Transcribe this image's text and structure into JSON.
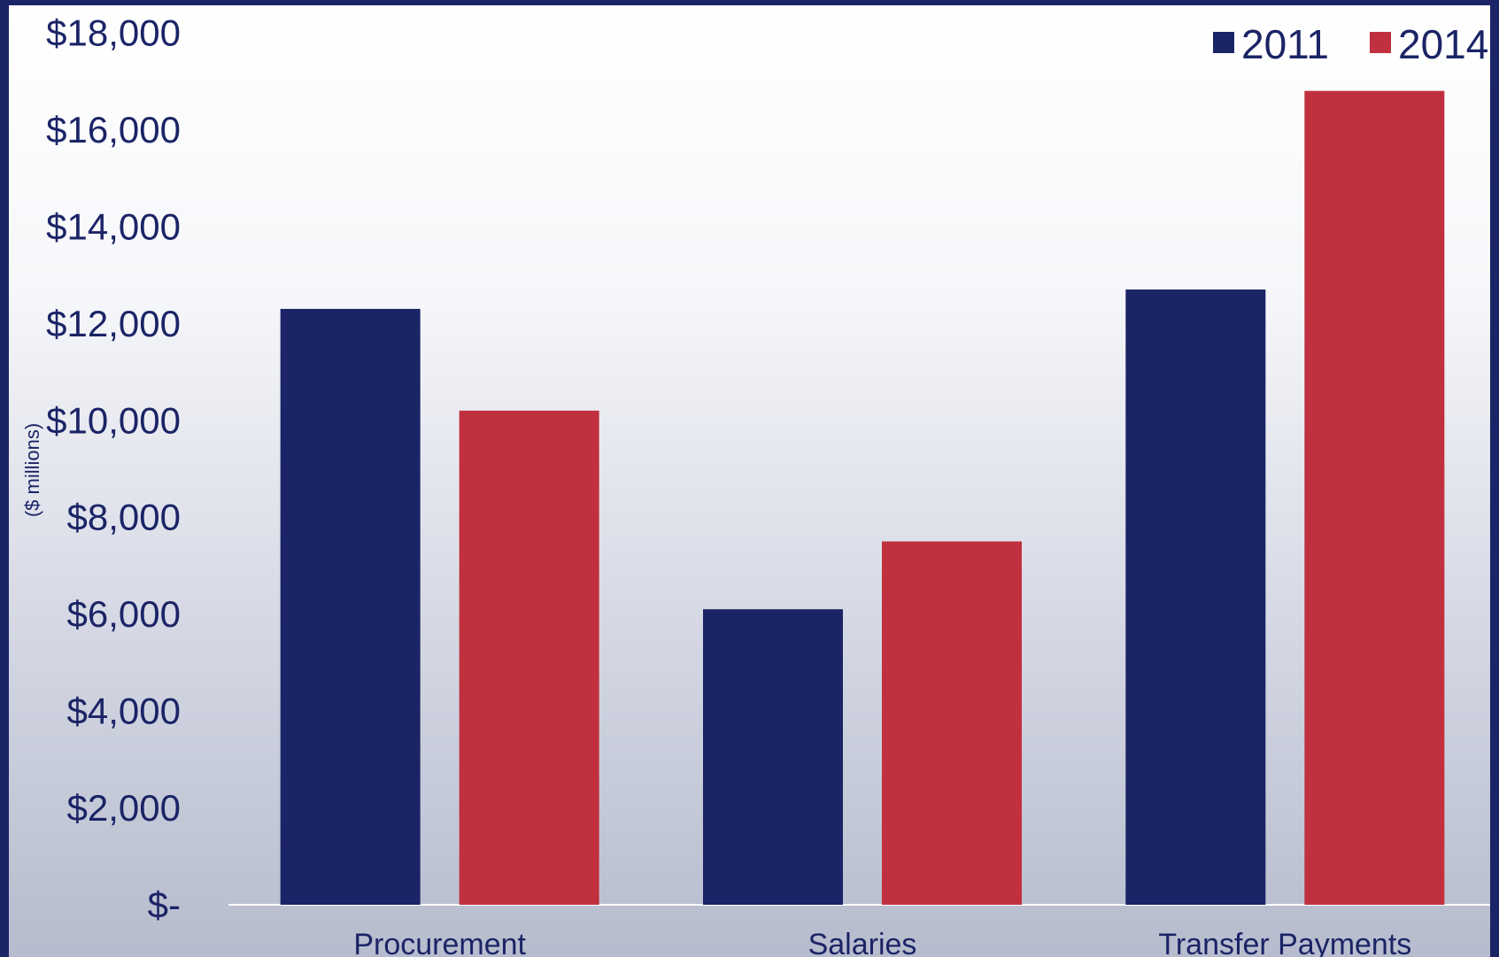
{
  "chart_data": {
    "type": "bar",
    "categories": [
      "Procurement",
      "Salaries",
      "Transfer Payments"
    ],
    "series": [
      {
        "name": "2011",
        "color": "#1b2466",
        "values": [
          12300,
          6100,
          12700
        ]
      },
      {
        "name": "2014",
        "color": "#c0303e",
        "values": [
          10200,
          7500,
          16800
        ]
      }
    ],
    "ylabel": "($ millions)",
    "ylim": [
      0,
      18000
    ],
    "yticks": [
      {
        "value": 0,
        "label": "$-"
      },
      {
        "value": 2000,
        "label": "$2,000"
      },
      {
        "value": 4000,
        "label": "$4,000"
      },
      {
        "value": 6000,
        "label": "$6,000"
      },
      {
        "value": 8000,
        "label": "$8,000"
      },
      {
        "value": 10000,
        "label": "$10,000"
      },
      {
        "value": 12000,
        "label": "$12,000"
      },
      {
        "value": 14000,
        "label": "$14,000"
      },
      {
        "value": 16000,
        "label": "$16,000"
      },
      {
        "value": 18000,
        "label": "$18,000"
      }
    ],
    "grid": false,
    "legend_position": "top-right"
  }
}
